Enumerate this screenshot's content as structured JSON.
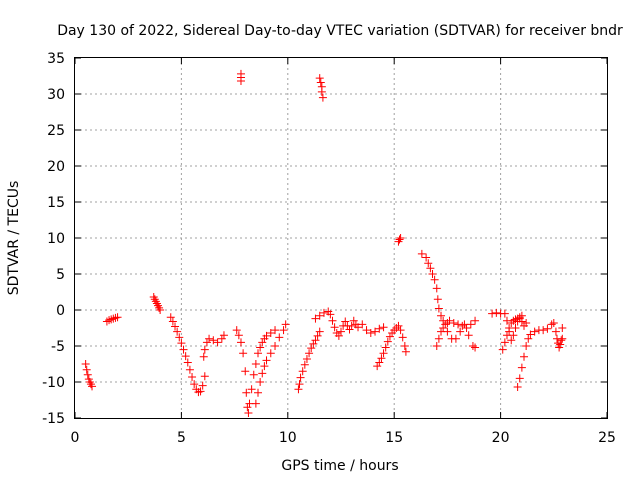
{
  "chart_data": {
    "type": "scatter",
    "title": "Day 130 of 2022, Sidereal Day-to-day VTEC variation (SDTVAR) for receiver bndr",
    "xlabel": "GPS time / hours",
    "ylabel": "SDTVAR / TECUs",
    "xlim": [
      0,
      25
    ],
    "ylim": [
      -15,
      35
    ],
    "xticks": [
      0,
      5,
      10,
      15,
      20,
      25
    ],
    "yticks": [
      -15,
      -10,
      -5,
      0,
      5,
      10,
      15,
      20,
      25,
      30,
      35
    ],
    "grid": true,
    "marker": "plus",
    "color": "#ff0000",
    "series": [
      {
        "name": "sdtvar",
        "points": [
          [
            0.5,
            -7.5
          ],
          [
            0.55,
            -8.3
          ],
          [
            0.6,
            -9.0
          ],
          [
            0.65,
            -9.6
          ],
          [
            0.7,
            -10.0
          ],
          [
            0.75,
            -10.3
          ],
          [
            0.8,
            -10.6
          ],
          [
            1.5,
            -1.6
          ],
          [
            1.6,
            -1.4
          ],
          [
            1.7,
            -1.3
          ],
          [
            1.8,
            -1.2
          ],
          [
            1.9,
            -1.1
          ],
          [
            2.0,
            -1.0
          ],
          [
            3.7,
            1.8
          ],
          [
            3.75,
            1.5
          ],
          [
            3.8,
            1.2
          ],
          [
            3.85,
            0.9
          ],
          [
            3.9,
            0.6
          ],
          [
            3.95,
            0.3
          ],
          [
            4.0,
            0.0
          ],
          [
            4.5,
            -1.0
          ],
          [
            4.6,
            -1.6
          ],
          [
            4.7,
            -2.3
          ],
          [
            4.8,
            -3.0
          ],
          [
            4.9,
            -3.8
          ],
          [
            5.0,
            -4.6
          ],
          [
            5.1,
            -5.5
          ],
          [
            5.2,
            -6.4
          ],
          [
            5.3,
            -7.3
          ],
          [
            5.4,
            -8.3
          ],
          [
            5.5,
            -9.3
          ],
          [
            5.6,
            -10.3
          ],
          [
            5.7,
            -11.0
          ],
          [
            5.8,
            -11.4
          ],
          [
            5.9,
            -11.3
          ],
          [
            6.0,
            -10.5
          ],
          [
            6.1,
            -9.2
          ],
          [
            6.05,
            -6.5
          ],
          [
            6.1,
            -5.5
          ],
          [
            6.2,
            -4.5
          ],
          [
            6.3,
            -4.0
          ],
          [
            6.5,
            -4.2
          ],
          [
            6.7,
            -4.5
          ],
          [
            6.9,
            -4.0
          ],
          [
            7.0,
            -3.5
          ],
          [
            7.8,
            32.8
          ],
          [
            7.8,
            32.3
          ],
          [
            7.8,
            31.8
          ],
          [
            7.6,
            -2.8
          ],
          [
            7.7,
            -3.5
          ],
          [
            7.8,
            -4.5
          ],
          [
            7.9,
            -6.0
          ],
          [
            8.0,
            -8.5
          ],
          [
            8.05,
            -11.5
          ],
          [
            8.1,
            -13.5
          ],
          [
            8.15,
            -14.3
          ],
          [
            8.2,
            -13.0
          ],
          [
            8.3,
            -11.0
          ],
          [
            8.4,
            -9.0
          ],
          [
            8.5,
            -7.5
          ],
          [
            8.6,
            -6.0
          ],
          [
            8.7,
            -5.2
          ],
          [
            8.8,
            -4.5
          ],
          [
            8.9,
            -4.0
          ],
          [
            9.0,
            -3.6
          ],
          [
            9.2,
            -3.2
          ],
          [
            9.4,
            -2.8
          ],
          [
            8.5,
            -13.0
          ],
          [
            8.6,
            -11.5
          ],
          [
            8.7,
            -10.0
          ],
          [
            8.8,
            -8.8
          ],
          [
            8.9,
            -7.8
          ],
          [
            9.0,
            -7.0
          ],
          [
            9.2,
            -6.0
          ],
          [
            9.4,
            -5.0
          ],
          [
            9.6,
            -3.8
          ],
          [
            9.8,
            -2.8
          ],
          [
            9.9,
            -2.0
          ],
          [
            10.5,
            -11.0
          ],
          [
            10.55,
            -10.3
          ],
          [
            10.6,
            -9.4
          ],
          [
            10.7,
            -8.5
          ],
          [
            10.8,
            -7.6
          ],
          [
            10.9,
            -6.8
          ],
          [
            11.0,
            -6.0
          ],
          [
            11.1,
            -5.3
          ],
          [
            11.2,
            -4.7
          ],
          [
            11.3,
            -4.2
          ],
          [
            11.4,
            -3.6
          ],
          [
            11.5,
            -3.0
          ],
          [
            11.5,
            32.2
          ],
          [
            11.55,
            31.6
          ],
          [
            11.6,
            31.0
          ],
          [
            11.6,
            30.3
          ],
          [
            11.65,
            29.5
          ],
          [
            11.3,
            -1.2
          ],
          [
            11.5,
            -0.8
          ],
          [
            11.7,
            -0.4
          ],
          [
            11.9,
            -0.2
          ],
          [
            12.0,
            -0.6
          ],
          [
            12.1,
            -1.5
          ],
          [
            12.2,
            -2.4
          ],
          [
            12.3,
            -3.2
          ],
          [
            12.4,
            -3.6
          ],
          [
            12.5,
            -3.0
          ],
          [
            12.6,
            -2.2
          ],
          [
            12.7,
            -1.6
          ],
          [
            12.8,
            -2.2
          ],
          [
            12.9,
            -2.7
          ],
          [
            13.0,
            -2.2
          ],
          [
            13.1,
            -1.5
          ],
          [
            13.2,
            -2.0
          ],
          [
            13.3,
            -2.4
          ],
          [
            13.5,
            -2.0
          ],
          [
            13.7,
            -2.8
          ],
          [
            13.9,
            -3.2
          ],
          [
            14.1,
            -3.0
          ],
          [
            14.3,
            -2.6
          ],
          [
            14.5,
            -2.4
          ],
          [
            14.2,
            -7.8
          ],
          [
            14.3,
            -7.3
          ],
          [
            14.4,
            -6.7
          ],
          [
            14.5,
            -6.0
          ],
          [
            14.6,
            -5.2
          ],
          [
            14.7,
            -4.4
          ],
          [
            14.8,
            -3.7
          ],
          [
            14.9,
            -3.2
          ],
          [
            15.0,
            -2.8
          ],
          [
            15.1,
            -2.5
          ],
          [
            15.2,
            -2.2
          ],
          [
            15.3,
            -2.8
          ],
          [
            15.4,
            -3.8
          ],
          [
            15.5,
            -5.0
          ],
          [
            15.55,
            -5.8
          ],
          [
            15.2,
            9.5
          ],
          [
            15.25,
            9.8
          ],
          [
            15.3,
            10.0
          ],
          [
            16.3,
            7.8
          ],
          [
            16.5,
            7.3
          ],
          [
            16.6,
            6.5
          ],
          [
            16.7,
            5.8
          ],
          [
            16.8,
            5.0
          ],
          [
            16.9,
            4.2
          ],
          [
            17.0,
            3.0
          ],
          [
            17.05,
            1.5
          ],
          [
            17.1,
            0.2
          ],
          [
            17.2,
            -0.8
          ],
          [
            17.3,
            -1.5
          ],
          [
            17.4,
            -2.0
          ],
          [
            17.5,
            -1.8
          ],
          [
            17.6,
            -1.5
          ],
          [
            17.8,
            -1.8
          ],
          [
            18.0,
            -2.0
          ],
          [
            18.2,
            -2.2
          ],
          [
            18.4,
            -2.5
          ],
          [
            18.6,
            -2.0
          ],
          [
            18.8,
            -1.5
          ],
          [
            17.0,
            -5.0
          ],
          [
            17.1,
            -4.0
          ],
          [
            17.2,
            -3.0
          ],
          [
            17.3,
            -2.5
          ],
          [
            17.5,
            -3.0
          ],
          [
            17.7,
            -4.0
          ],
          [
            17.9,
            -4.0
          ],
          [
            18.1,
            -3.0
          ],
          [
            18.3,
            -2.0
          ],
          [
            18.5,
            -3.5
          ],
          [
            18.7,
            -5.0
          ],
          [
            18.8,
            -5.2
          ],
          [
            19.6,
            -0.5
          ],
          [
            19.8,
            -0.4
          ],
          [
            20.0,
            -0.5
          ],
          [
            20.2,
            -0.5
          ],
          [
            20.3,
            -1.5
          ],
          [
            20.4,
            -3.0
          ],
          [
            20.5,
            -4.2
          ],
          [
            20.6,
            -3.5
          ],
          [
            20.7,
            -2.5
          ],
          [
            20.8,
            -1.6
          ],
          [
            20.9,
            -1.2
          ],
          [
            21.0,
            -1.6
          ],
          [
            21.1,
            -2.2
          ],
          [
            21.2,
            -1.8
          ],
          [
            20.1,
            -5.5
          ],
          [
            20.2,
            -4.5
          ],
          [
            20.3,
            -3.5
          ],
          [
            20.4,
            -2.5
          ],
          [
            20.5,
            -1.8
          ],
          [
            20.6,
            -1.5
          ],
          [
            20.7,
            -1.3
          ],
          [
            20.8,
            -1.2
          ],
          [
            20.9,
            -1.0
          ],
          [
            21.0,
            -0.8
          ],
          [
            20.8,
            -10.7
          ],
          [
            20.9,
            -9.5
          ],
          [
            21.0,
            -8.0
          ],
          [
            21.1,
            -6.5
          ],
          [
            21.2,
            -5.0
          ],
          [
            21.3,
            -4.0
          ],
          [
            21.4,
            -3.4
          ],
          [
            21.6,
            -3.0
          ],
          [
            21.8,
            -2.8
          ],
          [
            22.0,
            -2.8
          ],
          [
            22.2,
            -2.6
          ],
          [
            22.4,
            -2.0
          ],
          [
            22.5,
            -1.8
          ],
          [
            22.6,
            -3.0
          ],
          [
            22.65,
            -4.0
          ],
          [
            22.7,
            -4.6
          ],
          [
            22.75,
            -5.2
          ],
          [
            22.8,
            -4.8
          ],
          [
            22.85,
            -4.2
          ],
          [
            22.9,
            -4.0
          ],
          [
            22.9,
            -2.5
          ]
        ]
      }
    ]
  }
}
